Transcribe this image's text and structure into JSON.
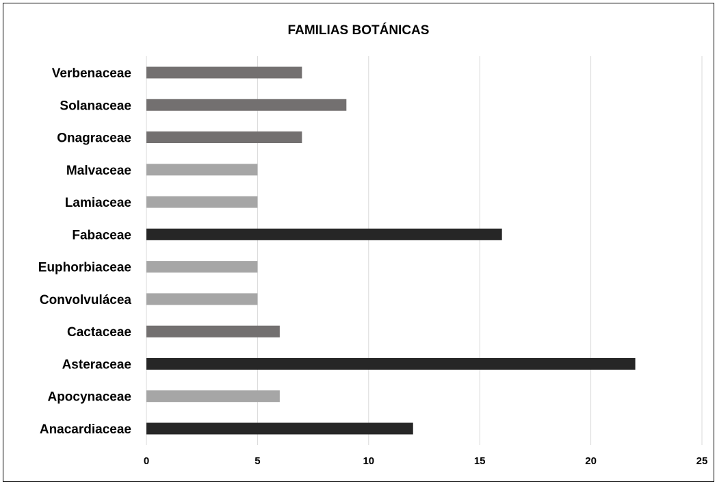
{
  "chart_data": {
    "type": "bar",
    "orientation": "horizontal",
    "title": "FAMILIAS BOTÁNICAS",
    "xlabel": "",
    "ylabel": "",
    "categories": [
      "Verbenaceae",
      "Solanaceae",
      "Onagraceae",
      "Malvaceae",
      "Lamiaceae",
      "Fabaceae",
      "Euphorbiaceae",
      "Convolvulácea",
      "Cactaceae",
      "Asteraceae",
      "Apocynaceae",
      "Anacardiaceae"
    ],
    "values": [
      7,
      9,
      7,
      5,
      5,
      16,
      5,
      5,
      6,
      22,
      6,
      12
    ],
    "bar_colors": [
      "#737070",
      "#737070",
      "#737070",
      "#a6a6a6",
      "#a6a6a6",
      "#262626",
      "#a6a6a6",
      "#a6a6a6",
      "#737070",
      "#262626",
      "#a6a6a6",
      "#262626"
    ],
    "xlim": [
      0,
      25
    ],
    "xticks": [
      "0",
      "5",
      "10",
      "15",
      "20",
      "25"
    ],
    "grid": true,
    "legend": "none"
  }
}
